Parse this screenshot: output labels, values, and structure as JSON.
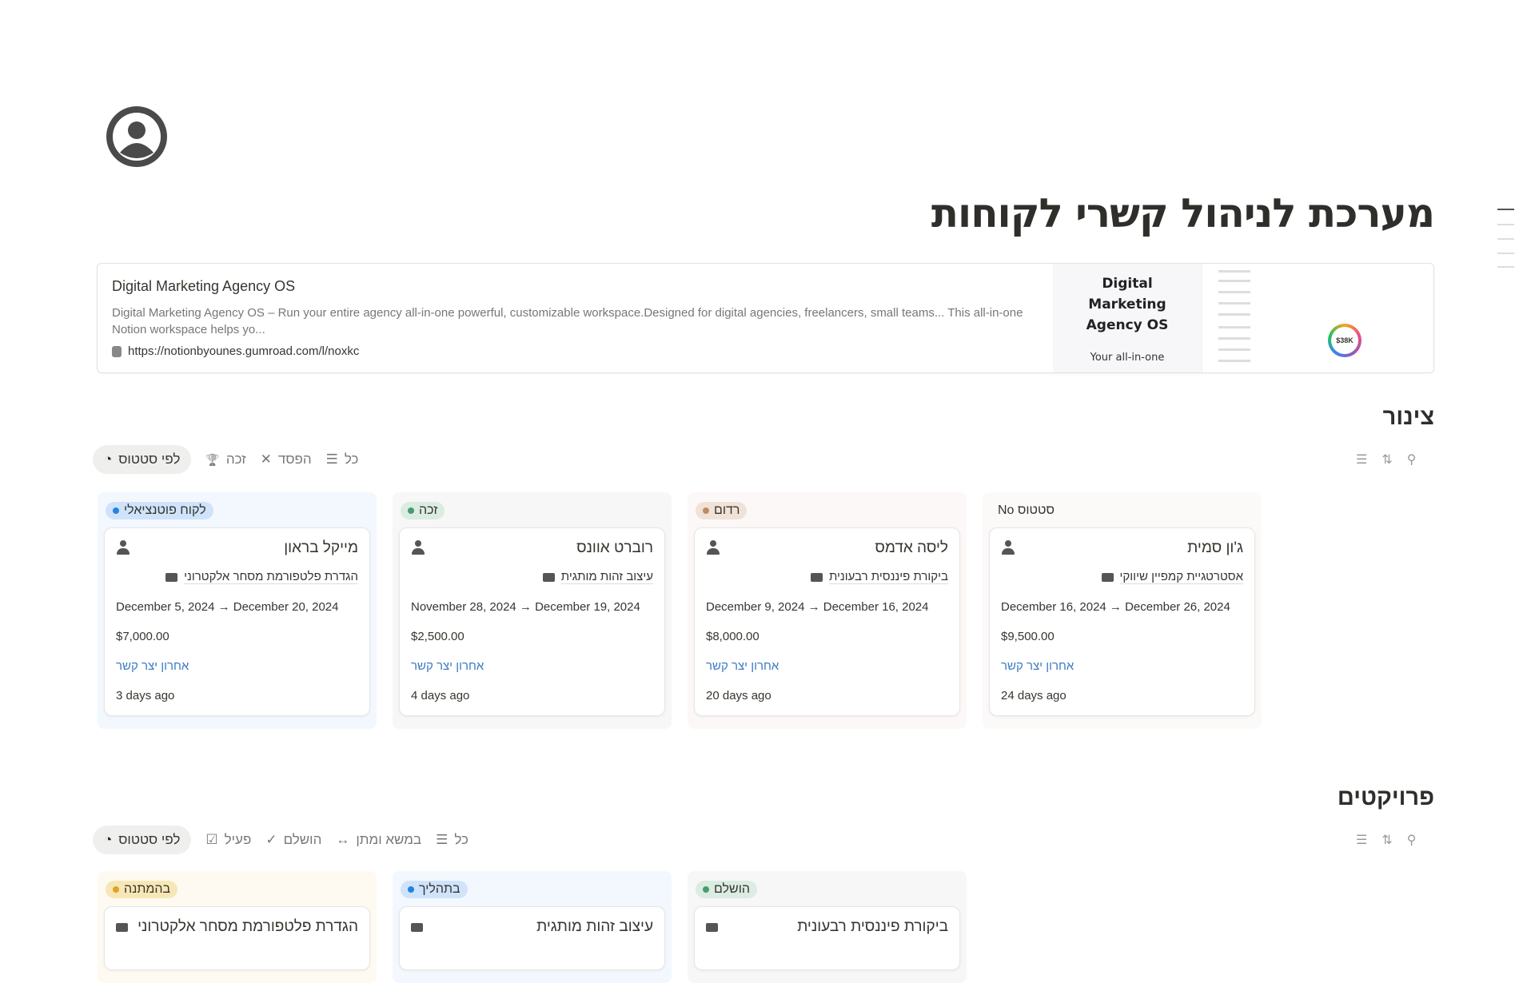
{
  "page": {
    "title": "מערכת לניהול קשרי לקוחות"
  },
  "bookmark": {
    "title": "Digital Marketing Agency OS",
    "description": "Digital Marketing Agency OS – Run your entire agency all-in-one powerful, customizable workspace.Designed for digital agencies, freelancers, small teams... This all-in-one Notion workspace helps yo...",
    "url": "https://notionbyounes.gumroad.com/l/noxkc",
    "cover_title": "Digital Marketing Agency OS",
    "cover_subtitle": "Your all-in-one",
    "preview_value": "$38K"
  },
  "pipeline": {
    "heading": "צינור",
    "views": [
      {
        "label": "לפי סטטוס",
        "icon": "status-icon"
      },
      {
        "label": "זכה",
        "icon": "trophy-icon"
      },
      {
        "label": "הפסד",
        "icon": "x-icon"
      },
      {
        "label": "כל",
        "icon": "list-icon"
      }
    ],
    "columns": [
      {
        "label": "לקוח פוטנציאלי",
        "color": "#2383e2",
        "bg": "#cfe3fb",
        "colbg": "#f3f8fe",
        "cards": [
          {
            "name": "מייקל בראון",
            "project": "הגדרת פלטפורמת מסחר אלקטרוני",
            "dates": "December 5, 2024 → December 20, 2024",
            "amount": "$7,000.00",
            "link": "אחרון יצר קשר",
            "ago": "3 days ago"
          }
        ]
      },
      {
        "label": "זכה",
        "color": "#4a9a6f",
        "bg": "#dbece2",
        "colbg": "#f7f7f8",
        "cards": [
          {
            "name": "רוברט אוונס",
            "project": "עיצוב זהות מותגית",
            "dates": "November 28, 2024 → December 19, 2024",
            "amount": "$2,500.00",
            "link": "אחרון יצר קשר",
            "ago": "4 days ago"
          }
        ]
      },
      {
        "label": "רדום",
        "color": "#c28b5d",
        "bg": "#f1e2d8",
        "colbg": "#fcf8f7",
        "cards": [
          {
            "name": "ליסה אדמס",
            "project": "ביקורת פיננסית רבעונית",
            "dates": "December 9, 2024 → December 16, 2024",
            "amount": "$8,000.00",
            "link": "אחרון יצר קשר",
            "ago": "20 days ago"
          }
        ]
      },
      {
        "label": "No סטטוס",
        "color": "",
        "bg": "",
        "colbg": "#fcf9f9",
        "cards": [
          {
            "name": "ג'ון סמית",
            "project": "אסטרטגיית קמפיין שיווקי",
            "dates": "December 16, 2024 → December 26, 2024",
            "amount": "$9,500.00",
            "link": "אחרון יצר קשר",
            "ago": "24 days ago"
          }
        ]
      }
    ]
  },
  "projects": {
    "heading": "פרויקטים",
    "views": [
      {
        "label": "לפי סטטוס",
        "icon": "status-icon"
      },
      {
        "label": "פעיל",
        "icon": "checkbox-icon"
      },
      {
        "label": "הושלם",
        "icon": "check-icon"
      },
      {
        "label": "במשא ומתן",
        "icon": "arrows-icon"
      },
      {
        "label": "כל",
        "icon": "list-icon"
      }
    ],
    "columns": [
      {
        "label": "בהמתנה",
        "color": "#dfa32a",
        "bg": "#f8e7b6",
        "colbg": "#fefaf2",
        "cards": [
          {
            "name": "הגדרת פלטפורמת מסחר אלקטרוני"
          }
        ]
      },
      {
        "label": "בתהליך",
        "color": "#2383e2",
        "bg": "#cfe3fb",
        "colbg": "#f3f8fe",
        "cards": [
          {
            "name": "עיצוב זהות מותגית"
          }
        ]
      },
      {
        "label": "הושלם",
        "color": "#4a9a6f",
        "bg": "#dbece2",
        "colbg": "#f7f7f8",
        "cards": [
          {
            "name": "ביקורת פיננסית רבעונית"
          }
        ]
      }
    ]
  }
}
